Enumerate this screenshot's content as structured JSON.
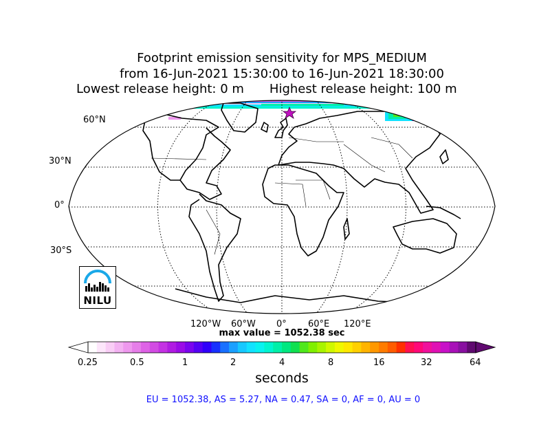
{
  "title": {
    "line1": "Footprint emission sensitivity for MPS_MEDIUM",
    "line2": "from 16-Jun-2021 15:30:00 to 16-Jun-2021 18:30:00",
    "line3a": "Lowest release height: 0 m",
    "line3b": "Highest release height: 100 m"
  },
  "map": {
    "projection": "Robinson",
    "lat_labels": [
      "60°N",
      "30°N",
      "0°",
      "30°S"
    ],
    "lon_labels": [
      "120°W",
      "60°W",
      "0°",
      "60°E",
      "120°E"
    ],
    "release_marker": "magenta-star",
    "max_value_text": "max value = 1052.38 sec"
  },
  "colorbar": {
    "tick_labels": [
      "0.25",
      "0.5",
      "1",
      "2",
      "4",
      "8",
      "16",
      "32",
      "64"
    ],
    "unit_label": "seconds",
    "colors": [
      "#ffffff",
      "#fde6fb",
      "#f9cdf6",
      "#f3b2f2",
      "#ee98ee",
      "#e67ee9",
      "#de62e6",
      "#d24be3",
      "#c432e3",
      "#b01ce2",
      "#9a0ce6",
      "#7a04ee",
      "#5500f4",
      "#3000fa",
      "#1730ff",
      "#1870ff",
      "#1aa0ff",
      "#16c8ff",
      "#11e2ff",
      "#08f2f0",
      "#00f5d0",
      "#00f0a8",
      "#00e880",
      "#10e050",
      "#50e81c",
      "#80f000",
      "#a8f400",
      "#d0f800",
      "#f0f800",
      "#ffe800",
      "#ffd000",
      "#ffb400",
      "#ff9800",
      "#ff7c00",
      "#ff5c00",
      "#ff3000",
      "#ff1050",
      "#ff0878",
      "#f0109c",
      "#e010b4",
      "#c810c8",
      "#a810b8",
      "#8810a0",
      "#600a70"
    ]
  },
  "regions_text": "EU = 1052.38,  AS = 5.27,  NA = 0.47,  SA = 0,  AF = 0,  AU = 0",
  "logo": {
    "text": "NILU"
  }
}
